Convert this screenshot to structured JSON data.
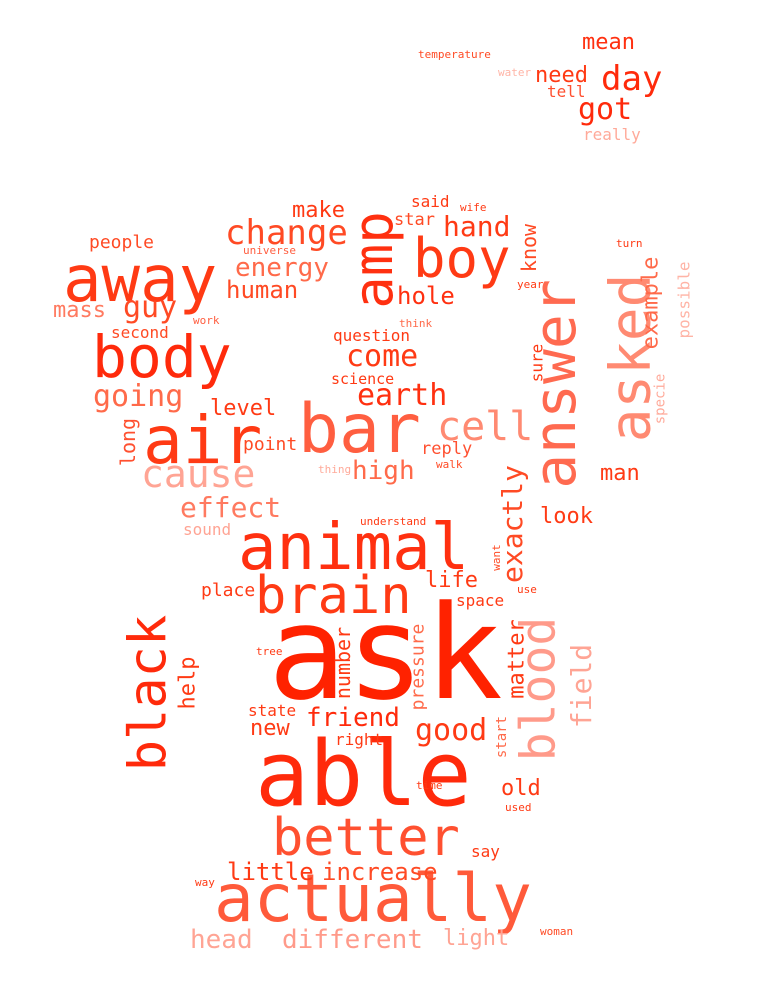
{
  "words": [
    {
      "text": "ask",
      "color": "#ff2200"
    },
    {
      "text": "able",
      "color": "#ff2a0b"
    },
    {
      "text": "animal",
      "color": "#ff3010"
    },
    {
      "text": "actually",
      "color": "#ff5a3a"
    },
    {
      "text": "away",
      "color": "#ff3a14"
    },
    {
      "text": "bar",
      "color": "#ff5e40"
    },
    {
      "text": "air",
      "color": "#ff3a14"
    },
    {
      "text": "body",
      "color": "#ff2a0b"
    },
    {
      "text": "brain",
      "color": "#ff3a14"
    },
    {
      "text": "better",
      "color": "#ff5030"
    },
    {
      "text": "black",
      "color": "#ff2a0b"
    },
    {
      "text": "blood",
      "color": "#ff9a8a"
    },
    {
      "text": "answer",
      "color": "#ff6a50"
    },
    {
      "text": "asked",
      "color": "#ff8a72"
    },
    {
      "text": "amp",
      "color": "#ff3010"
    },
    {
      "text": "boy",
      "color": "#ff3a14"
    },
    {
      "text": "cell",
      "color": "#ff8a72"
    },
    {
      "text": "cause",
      "color": "#ffa494"
    },
    {
      "text": "change",
      "color": "#ff4a24"
    },
    {
      "text": "come",
      "color": "#ff3a14"
    },
    {
      "text": "earth",
      "color": "#ff3010"
    },
    {
      "text": "effect",
      "color": "#ff7a60"
    },
    {
      "text": "exactly",
      "color": "#ff4a24"
    },
    {
      "text": "guy",
      "color": "#ff4a24"
    },
    {
      "text": "going",
      "color": "#ff6a4a"
    },
    {
      "text": "energy",
      "color": "#ff6a4a"
    },
    {
      "text": "human",
      "color": "#ff4a24"
    },
    {
      "text": "hand",
      "color": "#ff3a14"
    },
    {
      "text": "hole",
      "color": "#ff3010"
    },
    {
      "text": "high",
      "color": "#ff6a4a"
    },
    {
      "text": "friend",
      "color": "#ff2a0b"
    },
    {
      "text": "good",
      "color": "#ff3a14"
    },
    {
      "text": "head",
      "color": "#ffa494"
    },
    {
      "text": "different",
      "color": "#ff9a8a"
    },
    {
      "text": "little",
      "color": "#ff3a14"
    },
    {
      "text": "increase",
      "color": "#ff4a24"
    },
    {
      "text": "light",
      "color": "#ffa494"
    },
    {
      "text": "day",
      "color": "#ff2a0b"
    },
    {
      "text": "got",
      "color": "#ff2a0b"
    },
    {
      "text": "mean",
      "color": "#ff3010"
    },
    {
      "text": "need",
      "color": "#ff3a14"
    },
    {
      "text": "tell",
      "color": "#ff5030"
    },
    {
      "text": "really",
      "color": "#ffaa9a"
    },
    {
      "text": "temperature",
      "color": "#ff4a24"
    },
    {
      "text": "water",
      "color": "#ffb4a6"
    },
    {
      "text": "make",
      "color": "#ff3a14"
    },
    {
      "text": "said",
      "color": "#ff3a14"
    },
    {
      "text": "wife",
      "color": "#ff3a14"
    },
    {
      "text": "star",
      "color": "#ff4a24"
    },
    {
      "text": "people",
      "color": "#ff4a24"
    },
    {
      "text": "universe",
      "color": "#ff5e40"
    },
    {
      "text": "mass",
      "color": "#ff7a60"
    },
    {
      "text": "work",
      "color": "#ff5e40"
    },
    {
      "text": "second",
      "color": "#ff4a24"
    },
    {
      "text": "question",
      "color": "#ff3a14"
    },
    {
      "text": "think",
      "color": "#ff6a4a"
    },
    {
      "text": "know",
      "color": "#ff4a24"
    },
    {
      "text": "year",
      "color": "#ff3a14"
    },
    {
      "text": "turn",
      "color": "#ff3a14"
    },
    {
      "text": "example",
      "color": "#ff6a4a"
    },
    {
      "text": "possible",
      "color": "#ffb4a6"
    },
    {
      "text": "specie",
      "color": "#ffaa9a"
    },
    {
      "text": "sure",
      "color": "#ff3a14"
    },
    {
      "text": "science",
      "color": "#ff3a14"
    },
    {
      "text": "level",
      "color": "#ff3a14"
    },
    {
      "text": "long",
      "color": "#ff5030"
    },
    {
      "text": "point",
      "color": "#ff4a24"
    },
    {
      "text": "reply",
      "color": "#ff5030"
    },
    {
      "text": "walk",
      "color": "#ff4a24"
    },
    {
      "text": "thing",
      "color": "#ffaa9a"
    },
    {
      "text": "man",
      "color": "#ff3a14"
    },
    {
      "text": "look",
      "color": "#ff3a14"
    },
    {
      "text": "sound",
      "color": "#ffa494"
    },
    {
      "text": "understand",
      "color": "#ff3a14"
    },
    {
      "text": "want",
      "color": "#ff4a24"
    },
    {
      "text": "life",
      "color": "#ff3a14"
    },
    {
      "text": "place",
      "color": "#ff3a14"
    },
    {
      "text": "space",
      "color": "#ff3a14"
    },
    {
      "text": "use",
      "color": "#ff3a14"
    },
    {
      "text": "matter",
      "color": "#ff3a14"
    },
    {
      "text": "field",
      "color": "#ffa494"
    },
    {
      "text": "help",
      "color": "#ff3a14"
    },
    {
      "text": "tree",
      "color": "#ff3a14"
    },
    {
      "text": "number",
      "color": "#ff3a14"
    },
    {
      "text": "pressure",
      "color": "#ff6a4a"
    },
    {
      "text": "state",
      "color": "#ff3a14"
    },
    {
      "text": "new",
      "color": "#ff3a14"
    },
    {
      "text": "right",
      "color": "#ff3a14"
    },
    {
      "text": "start",
      "color": "#ff6a4a"
    },
    {
      "text": "old",
      "color": "#ff3a14"
    },
    {
      "text": "time",
      "color": "#ff3a14"
    },
    {
      "text": "used",
      "color": "#ff3a14"
    },
    {
      "text": "say",
      "color": "#ff3a14"
    },
    {
      "text": "way",
      "color": "#ff3a14"
    },
    {
      "text": "woman",
      "color": "#ff4a24"
    }
  ]
}
